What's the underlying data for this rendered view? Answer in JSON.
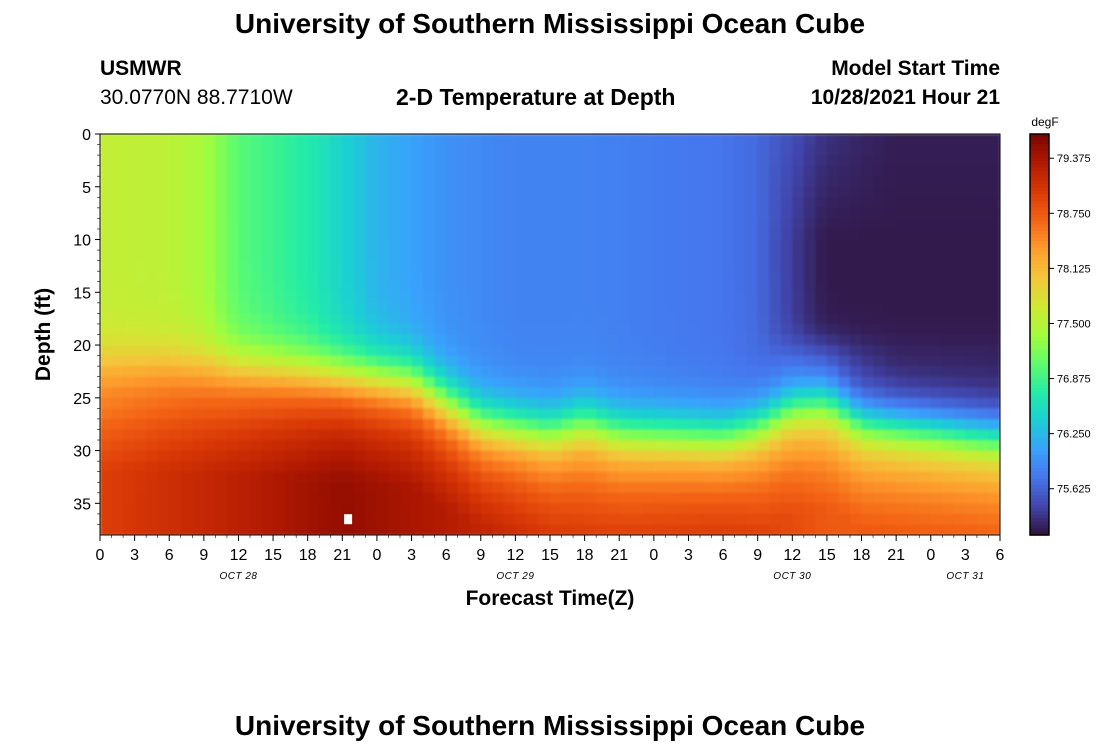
{
  "page": {
    "title": "University of Southern Mississippi Ocean Cube",
    "footer_title": "University of Southern Mississippi Ocean Cube",
    "station_id": "USMWR",
    "station_coords": "30.0770N  88.7710W",
    "plot_title": "2-D Temperature at Depth",
    "model_start_label": "Model Start Time",
    "model_start_value": "10/28/2021 Hour 21"
  },
  "chart_data": {
    "type": "heatmap",
    "title": "2-D Temperature at Depth",
    "xlabel": "Forecast Time(Z)",
    "ylabel": "Depth (ft)",
    "x_tick_labels": [
      "0",
      "3",
      "6",
      "9",
      "12",
      "15",
      "18",
      "21",
      "0",
      "3",
      "6",
      "9",
      "12",
      "15",
      "18",
      "21",
      "0",
      "3",
      "6",
      "9",
      "12",
      "15",
      "18",
      "21",
      "0",
      "3",
      "6"
    ],
    "x_hours": [
      0,
      3,
      6,
      9,
      12,
      15,
      18,
      21,
      24,
      27,
      30,
      33,
      36,
      39,
      42,
      45,
      48,
      51,
      54,
      57,
      60,
      63,
      66,
      69,
      72,
      75,
      78
    ],
    "date_labels": [
      {
        "text": "OCT 28",
        "hour": 12
      },
      {
        "text": "OCT 29",
        "hour": 36
      },
      {
        "text": "OCT 30",
        "hour": 60
      },
      {
        "text": "OCT 31",
        "hour": 75
      }
    ],
    "y_ticks": [
      0,
      5,
      10,
      15,
      20,
      25,
      30,
      35
    ],
    "ylim": [
      0,
      38
    ],
    "xlim": [
      0,
      78
    ],
    "y_inverted": true,
    "colorbar": {
      "unit": "degF",
      "tick_labels": [
        "79.375",
        "78.750",
        "78.125",
        "77.500",
        "76.875",
        "76.250",
        "75.625"
      ],
      "tick_values": [
        79.375,
        78.75,
        78.125,
        77.5,
        76.875,
        76.25,
        75.625
      ],
      "range": [
        75.1,
        79.65
      ],
      "colors": [
        "#30123b",
        "#4145ab",
        "#4675ed",
        "#39a2fc",
        "#1bcfd4",
        "#24eca6",
        "#61fc6c",
        "#a4fc3b",
        "#d1e834",
        "#f3c63a",
        "#fe9b2d",
        "#f36315",
        "#d93806",
        "#b11901",
        "#7a0402"
      ]
    },
    "surface_temp_by_hour": [
      {
        "hour": 0,
        "value": 77.6
      },
      {
        "hour": 6,
        "value": 77.55
      },
      {
        "hour": 9,
        "value": 77.4
      },
      {
        "hour": 12,
        "value": 77.0
      },
      {
        "hour": 15,
        "value": 76.85
      },
      {
        "hour": 18,
        "value": 76.7
      },
      {
        "hour": 24,
        "value": 76.2
      },
      {
        "hour": 30,
        "value": 75.95
      },
      {
        "hour": 36,
        "value": 75.85
      },
      {
        "hour": 42,
        "value": 75.85
      },
      {
        "hour": 48,
        "value": 75.8
      },
      {
        "hour": 54,
        "value": 75.75
      },
      {
        "hour": 60,
        "value": 75.6
      },
      {
        "hour": 63,
        "value": 75.45
      },
      {
        "hour": 66,
        "value": 75.3
      },
      {
        "hour": 69,
        "value": 75.2
      },
      {
        "hour": 72,
        "value": 75.2
      },
      {
        "hour": 78,
        "value": 75.2
      }
    ],
    "bottom_temp_by_hour": [
      {
        "hour": 0,
        "value": 78.95
      },
      {
        "hour": 12,
        "value": 79.25
      },
      {
        "hour": 21,
        "value": 79.5
      },
      {
        "hour": 30,
        "value": 79.3
      },
      {
        "hour": 42,
        "value": 78.95
      },
      {
        "hour": 54,
        "value": 79.05
      },
      {
        "hour": 63,
        "value": 78.75
      },
      {
        "hour": 78,
        "value": 78.75
      }
    ],
    "thermocline_depth_by_hour": [
      {
        "hour": 0,
        "value": 22
      },
      {
        "hour": 6,
        "value": 22
      },
      {
        "hour": 15,
        "value": 22.5
      },
      {
        "hour": 27,
        "value": 23.5
      },
      {
        "hour": 33,
        "value": 27.5
      },
      {
        "hour": 39,
        "value": 28.5
      },
      {
        "hour": 42,
        "value": 27.5
      },
      {
        "hour": 45,
        "value": 28.5
      },
      {
        "hour": 54,
        "value": 29
      },
      {
        "hour": 57,
        "value": 28
      },
      {
        "hour": 60,
        "value": 26
      },
      {
        "hour": 63,
        "value": 25.5
      },
      {
        "hour": 66,
        "value": 27.5
      },
      {
        "hour": 78,
        "value": 29
      }
    ],
    "deep_cold_pocket": {
      "hour_start": 63,
      "depth_max": 20,
      "value": 75.15
    },
    "marker": {
      "hour": 21.5,
      "depth": 36.5
    }
  }
}
